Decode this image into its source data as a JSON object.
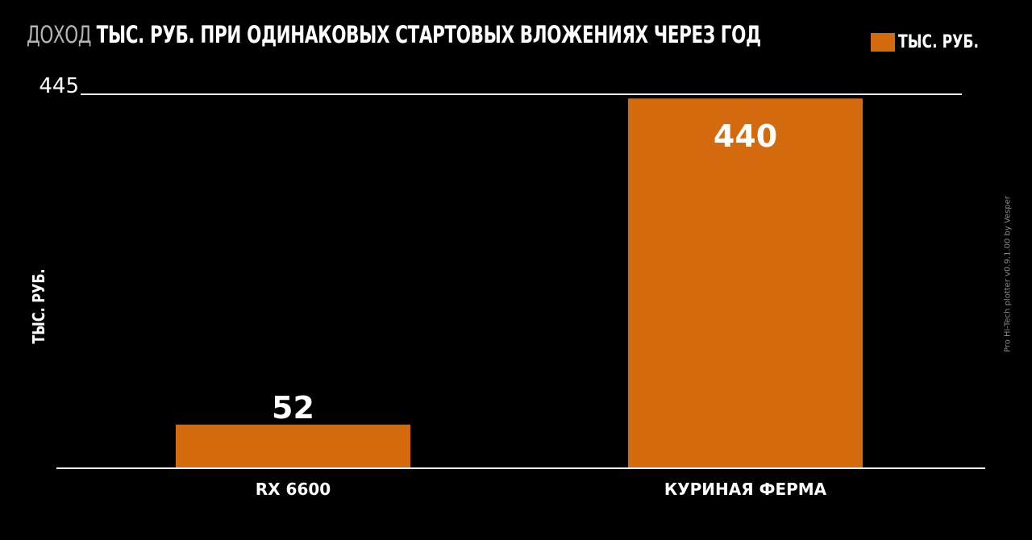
{
  "title": {
    "light": "ДОХОД",
    "bold": "ТЫС. РУБ. ПРИ ОДИНАКОВЫХ СТАРТОВЫХ ВЛОЖЕНИЯХ ЧЕРЕЗ ГОД"
  },
  "legend_label": "ТЫС. РУБ.",
  "watermark": "Pro Hi-Tech plotter v0.9.1.00 by Vesper",
  "colors": {
    "bar": "#d36a0d",
    "background": "#000000",
    "text": "#ffffff"
  },
  "chart_data": {
    "type": "bar",
    "title": "ДОХОД ТЫС. РУБ. ПРИ ОДИНАКОВЫХ СТАРТОВЫХ ВЛОЖЕНИЯХ ЧЕРЕЗ ГОД",
    "categories": [
      "RX 6600",
      "КУРИНАЯ ФЕРМА"
    ],
    "series": [
      {
        "name": "ТЫС. РУБ.",
        "values": [
          52,
          440
        ]
      }
    ],
    "ylabel": "ТЫС. РУБ.",
    "xlabel": "",
    "ylim": [
      0,
      445
    ],
    "yticks": [
      "445"
    ],
    "data_labels": [
      "52",
      "440"
    ],
    "legend": "top-right",
    "grid": false
  }
}
